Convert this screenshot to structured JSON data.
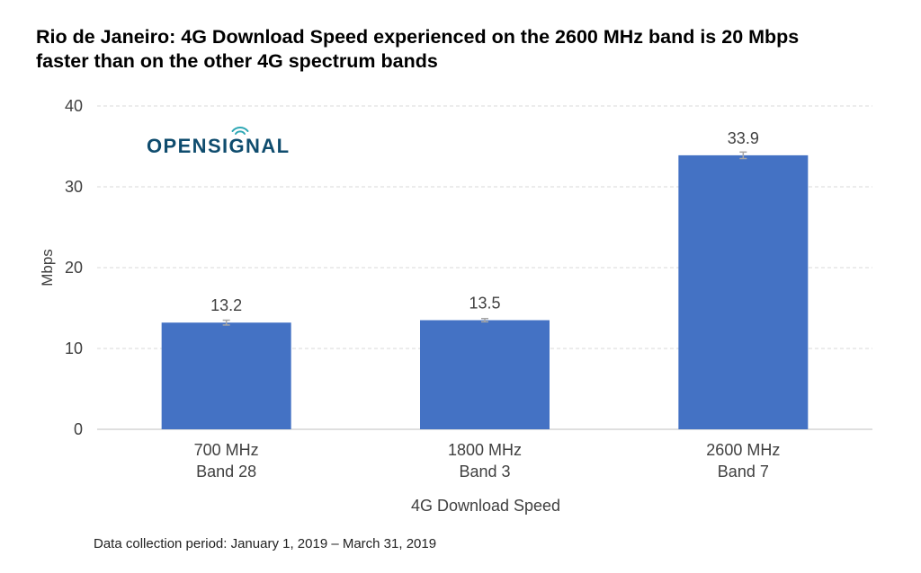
{
  "title_lines": [
    "Rio de Janeiro: 4G Download Speed experienced on the 2600 MHz band is 20 Mbps",
    "faster than on the other 4G spectrum bands"
  ],
  "logo_text": "OPENSIGNAL",
  "footnote": "Data collection period: January 1, 2019 – March 31, 2019",
  "colors": {
    "bar": "#4472C4",
    "logo": "#0F4C6E",
    "gridline": "#D9D9D9",
    "error_bar": "#A6A6A6"
  },
  "chart_data": {
    "type": "bar",
    "title": "Rio de Janeiro: 4G Download Speed experienced on the 2600 MHz band is 20 Mbps faster than on the other 4G spectrum bands",
    "categories": [
      [
        "700 MHz",
        "Band 28"
      ],
      [
        "1800 MHz",
        "Band 3"
      ],
      [
        "2600 MHz",
        "Band 7"
      ]
    ],
    "values": [
      13.2,
      13.5,
      33.9
    ],
    "value_labels": [
      "13.2",
      "13.5",
      "33.9"
    ],
    "error_bars": [
      [
        12.9,
        13.5
      ],
      [
        13.3,
        13.7
      ],
      [
        33.5,
        34.3
      ]
    ],
    "xlabel": "4G Download Speed",
    "ylabel": "Mbps",
    "ylim": [
      0,
      40
    ],
    "yticks": [
      0,
      10,
      20,
      30,
      40
    ],
    "grid": true,
    "grid_style": "dashed"
  }
}
